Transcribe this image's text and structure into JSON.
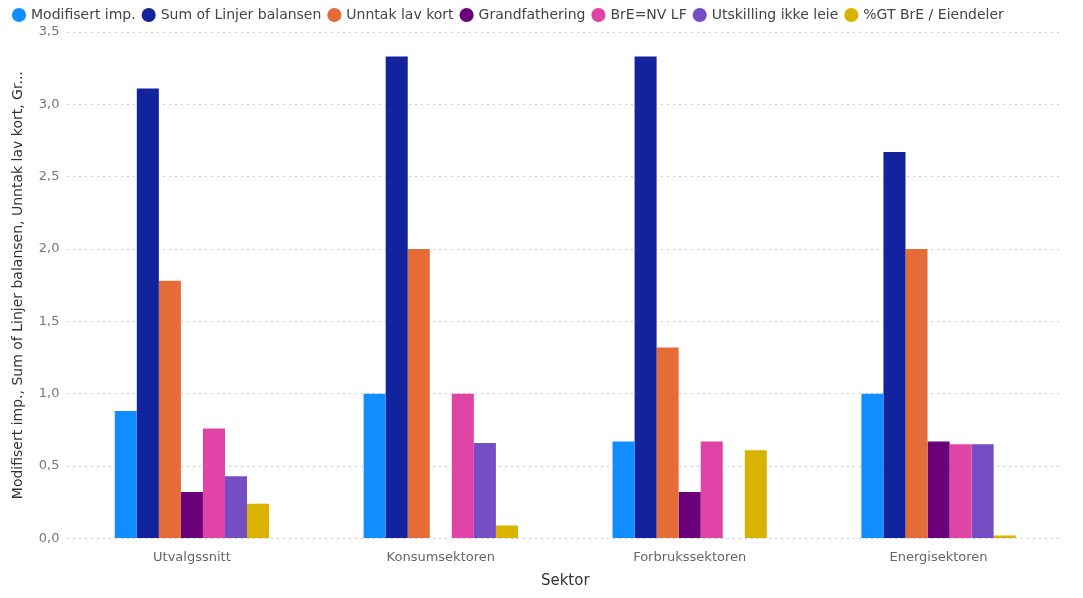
{
  "chart_data": {
    "type": "bar",
    "xlabel": "Sektor",
    "ylabel": "Modifisert imp., Sum of Linjer balansen, Unntak lav kort, Gr...",
    "categories": [
      "Utvalgssnitt",
      "Konsumsektoren",
      "Forbrukssektoren",
      "Energisektoren"
    ],
    "series": [
      {
        "name": "Modifisert imp.",
        "color": "#118dff",
        "values": [
          0.88,
          1.0,
          0.67,
          1.0
        ]
      },
      {
        "name": "Sum of Linjer balansen",
        "color": "#12239e",
        "values": [
          3.11,
          3.33,
          3.33,
          2.67
        ]
      },
      {
        "name": "Unntak lav kort",
        "color": "#e66c37",
        "values": [
          1.78,
          2.0,
          1.32,
          2.0
        ]
      },
      {
        "name": "Grandfathering",
        "color": "#6b007b",
        "values": [
          0.32,
          null,
          0.32,
          0.67
        ]
      },
      {
        "name": "BrE=NV LF",
        "color": "#e044a7",
        "values": [
          0.76,
          1.0,
          0.67,
          0.65
        ]
      },
      {
        "name": "Utskilling ikke leie",
        "color": "#744ec2",
        "values": [
          0.43,
          0.66,
          null,
          0.65
        ]
      },
      {
        "name": "%GT BrE / Eiendeler",
        "color": "#d9b300",
        "values": [
          0.24,
          0.09,
          0.61,
          0.02
        ]
      }
    ],
    "ylim": [
      0,
      3.5
    ],
    "yticks": [
      {
        "value": 0,
        "label": "0,0"
      },
      {
        "value": 0.5,
        "label": "0,5"
      },
      {
        "value": 1,
        "label": "1,0"
      },
      {
        "value": 1.5,
        "label": "1,5"
      },
      {
        "value": 2,
        "label": "2,0"
      },
      {
        "value": 2.5,
        "label": "2,5"
      },
      {
        "value": 3,
        "label": "3,0"
      },
      {
        "value": 3.5,
        "label": "3,5"
      }
    ],
    "grid": "y",
    "legend": "top left",
    "marker": "circle"
  }
}
